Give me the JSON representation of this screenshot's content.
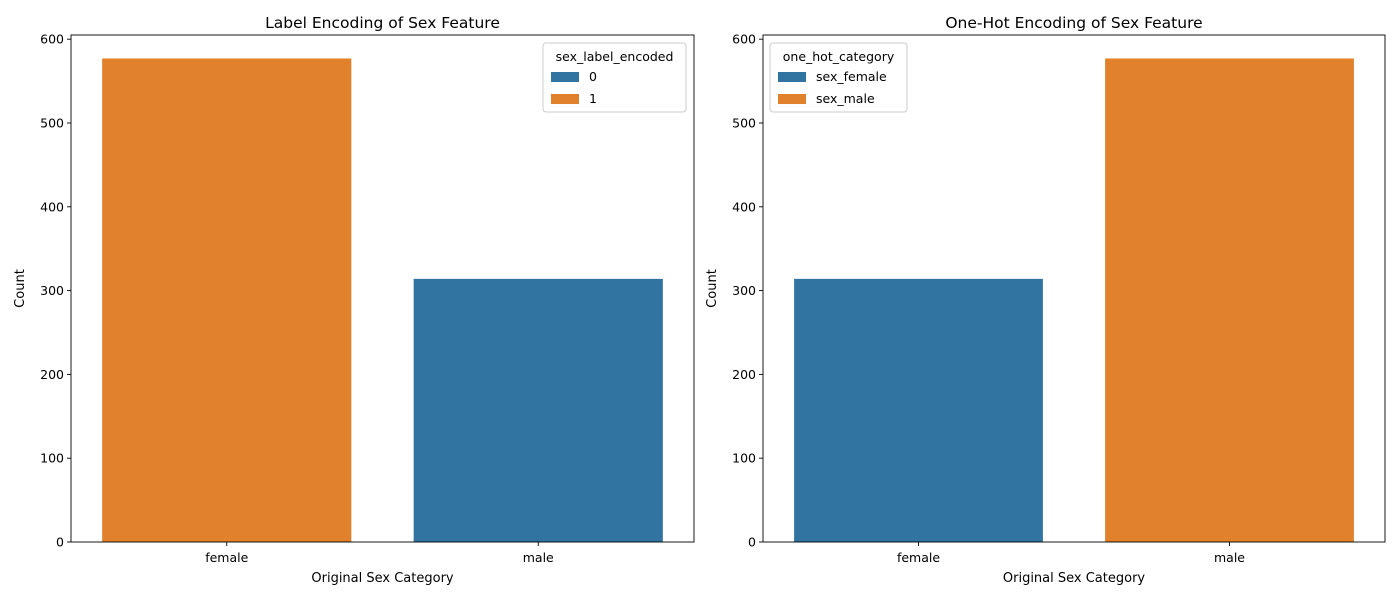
{
  "chart_data": [
    {
      "type": "bar",
      "title": "Label Encoding of Sex Feature",
      "xlabel": "Original Sex Category",
      "ylabel": "Count",
      "categories": [
        "female",
        "male"
      ],
      "values": [
        577,
        314
      ],
      "bar_series": [
        "1",
        "0"
      ],
      "ylim": [
        0,
        605
      ],
      "yticks": [
        0,
        100,
        200,
        300,
        400,
        500,
        600
      ],
      "legend": {
        "title": "sex_label_encoded",
        "position": "top-right",
        "entries": [
          {
            "label": "0",
            "color": "#3274a1"
          },
          {
            "label": "1",
            "color": "#e1812c"
          }
        ]
      },
      "grid": false
    },
    {
      "type": "bar",
      "title": "One-Hot Encoding of Sex Feature",
      "xlabel": "Original Sex Category",
      "ylabel": "Count",
      "categories": [
        "female",
        "male"
      ],
      "values": [
        314,
        577
      ],
      "bar_series": [
        "sex_female",
        "sex_male"
      ],
      "ylim": [
        0,
        605
      ],
      "yticks": [
        0,
        100,
        200,
        300,
        400,
        500,
        600
      ],
      "legend": {
        "title": "one_hot_category",
        "position": "top-left",
        "entries": [
          {
            "label": "sex_female",
            "color": "#3274a1"
          },
          {
            "label": "sex_male",
            "color": "#e1812c"
          }
        ]
      },
      "grid": false
    }
  ]
}
